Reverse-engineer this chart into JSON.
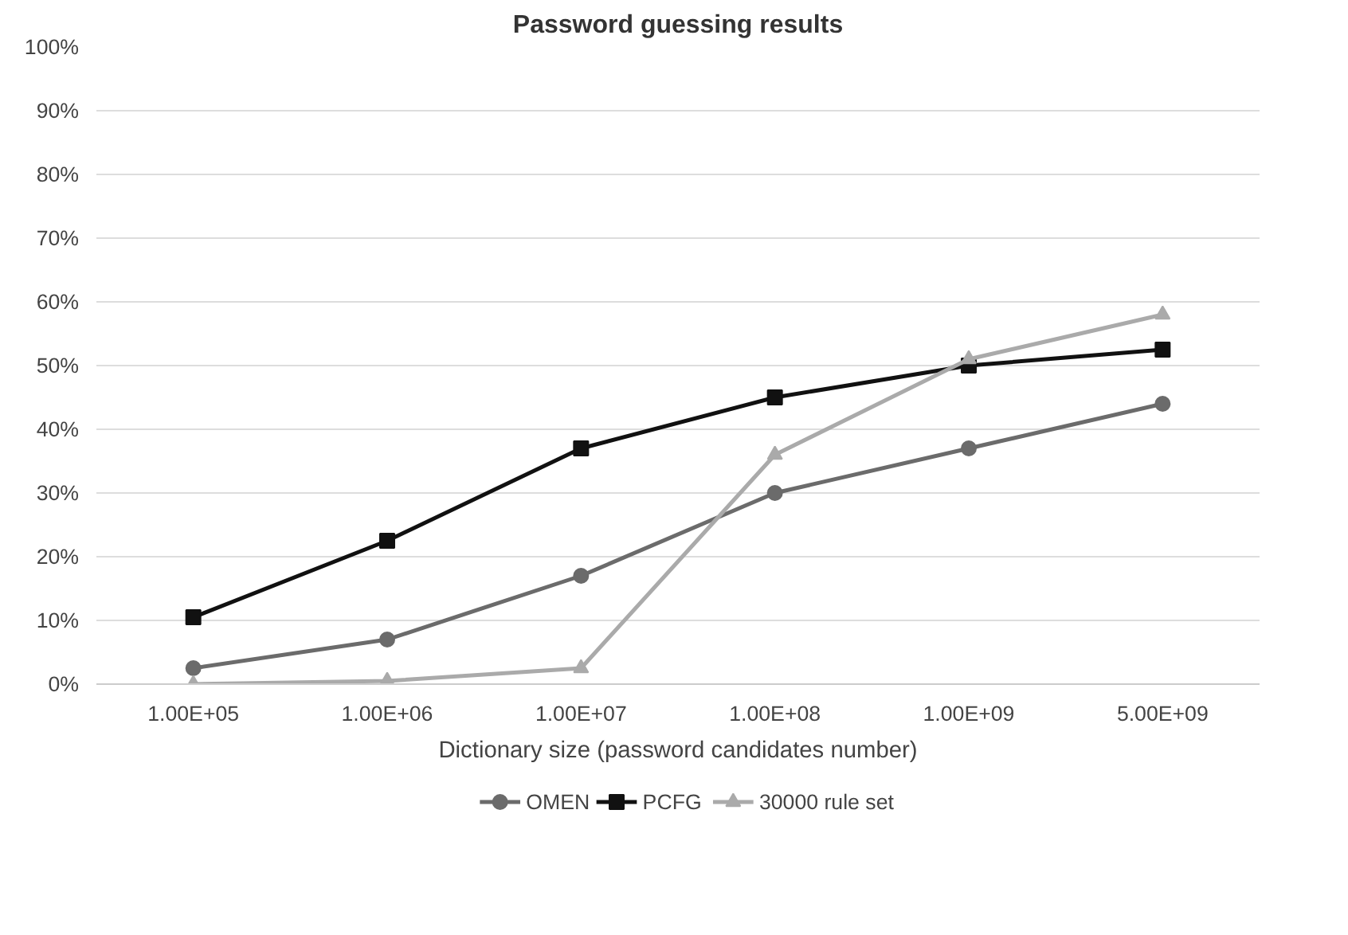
{
  "chart_data": {
    "type": "line",
    "title": "Password guessing results",
    "xlabel": "Dictionary size (password candidates number)",
    "categories": [
      "1.00E+05",
      "1.00E+06",
      "1.00E+07",
      "1.00E+08",
      "1.00E+09",
      "5.00E+09"
    ],
    "ylim": [
      0,
      100
    ],
    "yticks": [
      {
        "value": 0,
        "label": "0%"
      },
      {
        "value": 10,
        "label": "10%"
      },
      {
        "value": 20,
        "label": "20%"
      },
      {
        "value": 30,
        "label": "30%"
      },
      {
        "value": 40,
        "label": "40%"
      },
      {
        "value": 50,
        "label": "50%"
      },
      {
        "value": 60,
        "label": "60%"
      },
      {
        "value": 70,
        "label": "70%"
      },
      {
        "value": 80,
        "label": "80%"
      },
      {
        "value": 90,
        "label": "90%"
      },
      {
        "value": 100,
        "label": "100%"
      }
    ],
    "grid": "y",
    "legend": "bottom",
    "series": [
      {
        "name": "OMEN",
        "color": "#6b6b6b",
        "marker": "circle",
        "values": [
          2.5,
          7,
          17,
          30,
          37,
          44
        ]
      },
      {
        "name": "PCFG",
        "color": "#111111",
        "marker": "square",
        "values": [
          10.5,
          22.5,
          37,
          45,
          50,
          52.5
        ]
      },
      {
        "name": "30000 rule set",
        "color": "#aaaaaa",
        "marker": "triangle",
        "values": [
          0,
          0.5,
          2.5,
          36,
          51,
          58
        ]
      }
    ]
  }
}
